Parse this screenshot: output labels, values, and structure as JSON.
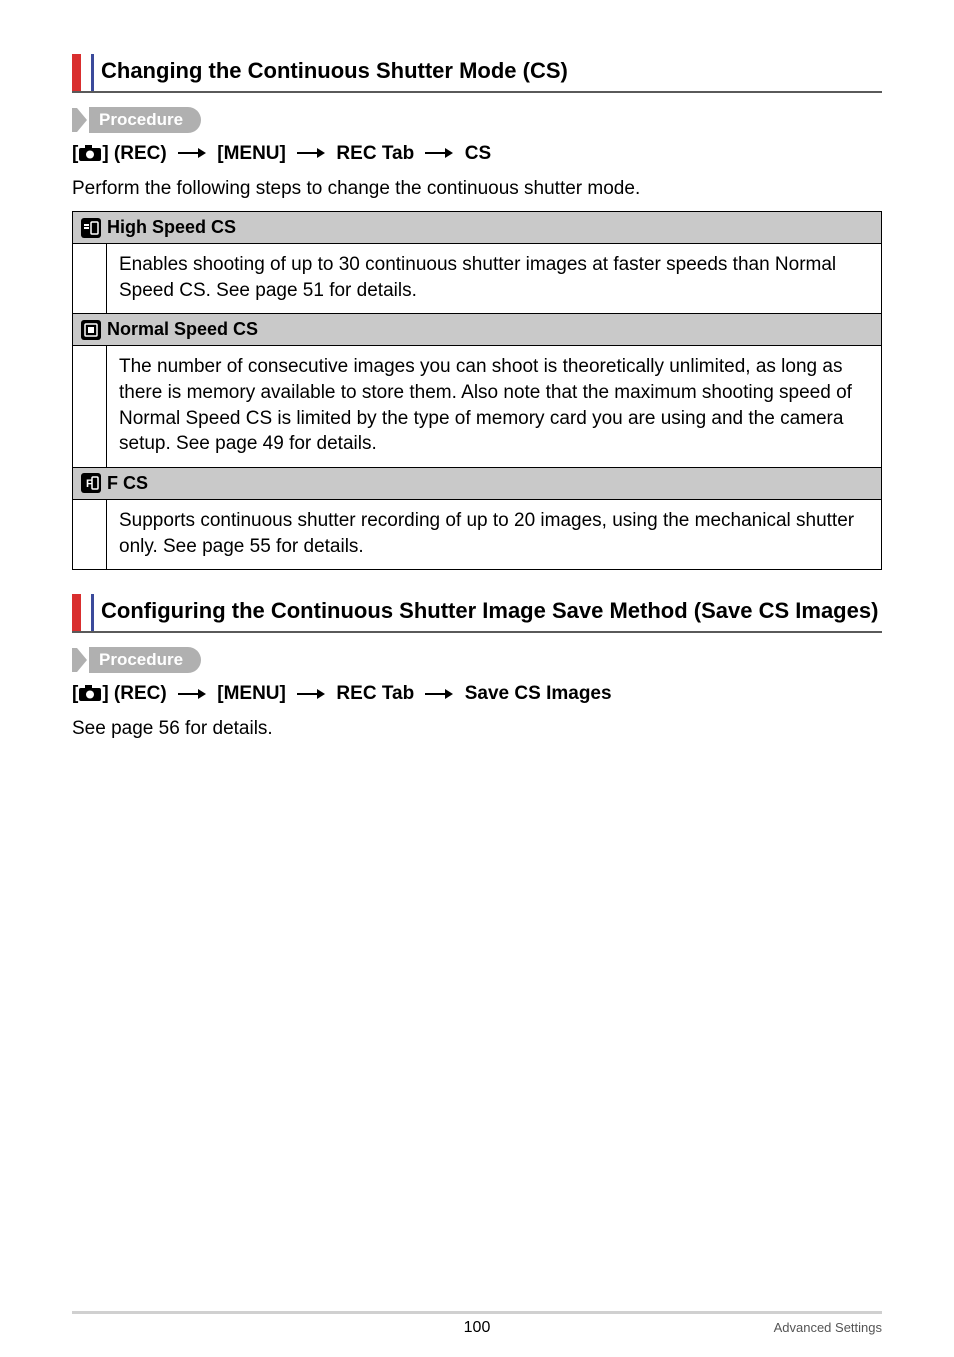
{
  "section1": {
    "heading": "Changing the Continuous Shutter Mode (CS)",
    "procedure_label": "Procedure",
    "path_parts": [
      "[",
      "CAM",
      "] (REC) ",
      "ARR",
      " [MENU] ",
      "ARR",
      " REC Tab ",
      "ARR",
      " CS"
    ],
    "intro": "Perform the following steps to change the continuous shutter mode.",
    "rows": [
      {
        "icon": "hs",
        "title": "High Speed CS",
        "body": "Enables shooting of up to 30 continuous shutter images at faster speeds than Normal Speed CS. See page 51 for details."
      },
      {
        "icon": "ns",
        "title": "Normal Speed CS",
        "body": "The number of consecutive images you can shoot is theoretically unlimited, as long as there is memory available to store them. Also note that the maximum shooting speed of Normal Speed CS is limited by the type of memory card you are using and the camera setup. See page 49 for details."
      },
      {
        "icon": "f",
        "title": "F CS",
        "body": "Supports continuous shutter recording of up to 20 images, using the mechanical shutter only. See page 55 for details."
      }
    ]
  },
  "section2": {
    "heading": "Configuring the Continuous Shutter Image Save Method (Save CS Images)",
    "procedure_label": "Procedure",
    "path_parts": [
      "[",
      "CAM",
      "] (REC) ",
      "ARR",
      " [MENU] ",
      "ARR",
      " REC Tab ",
      "ARR",
      " Save CS Images"
    ],
    "body": "See page 56 for details."
  },
  "footer": {
    "page": "100",
    "right": "Advanced Settings"
  },
  "colors": {
    "red": "#d92e2e",
    "blue": "#3b4a9b",
    "grey_pill": "#b0b0b0",
    "header_bg": "#c9c9c9",
    "footer_rule": "#d0d0d0"
  }
}
